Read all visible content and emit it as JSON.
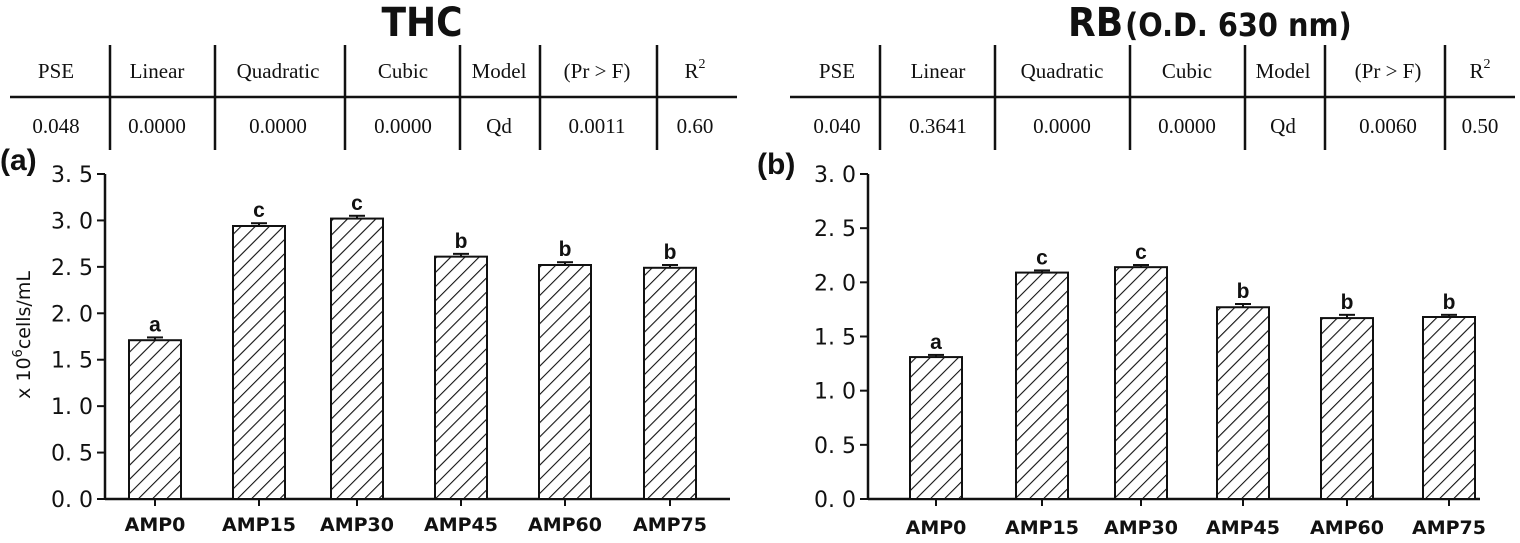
{
  "tables": [
    {
      "headers": [
        "PSE",
        "Linear",
        "Quadratic",
        "Cubic",
        "Model",
        "(Pr > F)",
        "R"
      ],
      "header_sup": "2",
      "values": [
        "0.048",
        "0.0000",
        "0.0000",
        "0.0000",
        "Qd",
        "0.0011",
        "0.60"
      ]
    },
    {
      "headers": [
        "PSE",
        "Linear",
        "Quadratic",
        "Cubic",
        "Model",
        "(Pr > F)",
        "R"
      ],
      "header_sup": "2",
      "values": [
        "0.040",
        "0.3641",
        "0.0000",
        "0.0000",
        "Qd",
        "0.0060",
        "0.50"
      ]
    }
  ],
  "chart_data": [
    {
      "type": "bar",
      "panel_label": "(a)",
      "title": "THC",
      "ylabel_prefix": "x 10",
      "ylabel_sup": "6",
      "ylabel_suffix": "cells/mL",
      "categories": [
        "AMP0",
        "AMP15",
        "AMP30",
        "AMP45",
        "AMP60",
        "AMP75"
      ],
      "values": [
        1.71,
        2.94,
        3.02,
        2.61,
        2.52,
        2.49
      ],
      "errors": [
        0.03,
        0.03,
        0.03,
        0.03,
        0.03,
        0.03
      ],
      "significance": [
        "a",
        "c",
        "c",
        "b",
        "b",
        "b"
      ],
      "ylim": [
        0,
        3.5
      ],
      "yticks": [
        "0. 0",
        "0. 5",
        "1. 0",
        "1. 5",
        "2. 0",
        "2. 5",
        "3. 0",
        "3. 5"
      ],
      "bar_fill": "hatched",
      "grid": false
    },
    {
      "type": "bar",
      "panel_label": "(b)",
      "title_main": "RB",
      "title_paren": "(O.D. 630 nm)",
      "categories": [
        "AMP0",
        "AMP15",
        "AMP30",
        "AMP45",
        "AMP60",
        "AMP75"
      ],
      "values": [
        1.31,
        2.09,
        2.14,
        1.77,
        1.67,
        1.68
      ],
      "errors": [
        0.02,
        0.02,
        0.02,
        0.03,
        0.03,
        0.02
      ],
      "significance": [
        "a",
        "c",
        "c",
        "b",
        "b",
        "b"
      ],
      "ylim": [
        0,
        3.0
      ],
      "yticks": [
        "0. 0",
        "0. 5",
        "1. 0",
        "1. 5",
        "2. 0",
        "2. 5",
        "3. 0"
      ],
      "bar_fill": "hatched",
      "grid": false
    }
  ]
}
